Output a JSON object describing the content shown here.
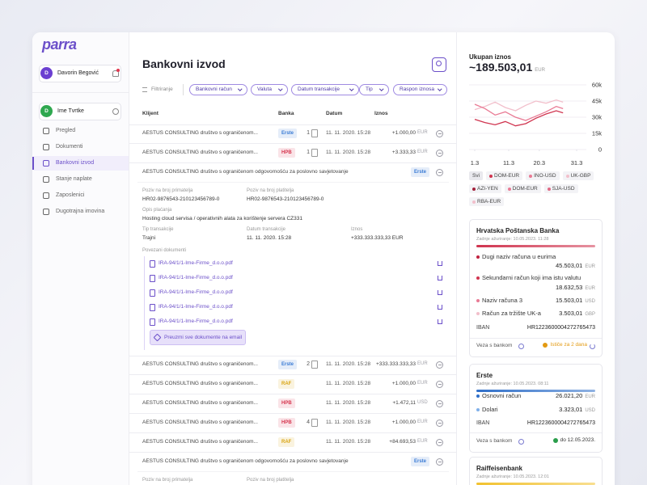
{
  "sidebar": {
    "logo": "parra",
    "user": {
      "initial": "D",
      "name": "Davorin Begović"
    },
    "company": {
      "initial": "D",
      "name": "Ime Tvrtke"
    },
    "nav": [
      {
        "label": "Pregled",
        "active": false
      },
      {
        "label": "Dokumenti",
        "active": false
      },
      {
        "label": "Bankovni izvod",
        "active": true
      },
      {
        "label": "Stanje naplate",
        "active": false
      },
      {
        "label": "Zaposlenici",
        "active": false
      },
      {
        "label": "Dugotrajna imovina",
        "active": false
      }
    ]
  },
  "main": {
    "title": "Bankovni izvod",
    "filter_label": "Filtriranje",
    "filters": [
      "Bankovni račun",
      "Valuta",
      "Datum transakcije",
      "Tip",
      "Raspon iznosa"
    ],
    "columns": [
      "Klijent",
      "Banka",
      "Datum",
      "Iznos"
    ]
  },
  "table": {
    "rows": [
      {
        "client": "AESTUS CONSULTING društvo s ograničenom...",
        "bank": "Erste",
        "bank_color": "#3a7bd5",
        "docs": 1,
        "date": "11. 11. 2020. 15:28",
        "amount": "+1.000,00",
        "currency": "EUR"
      },
      {
        "client": "AESTUS CONSULTING društvo s ograničenom...",
        "bank": "HPB",
        "bank_color": "#d6364f",
        "docs": 1,
        "date": "11. 11. 2020. 15:28",
        "amount": "+3.333,33",
        "currency": "EUR"
      },
      {
        "client": "AESTUS CONSULTING društvo s ograničenom odgovornošću za poslovno savjetovanje",
        "bank": "Erste",
        "bank_color": "#3a7bd5",
        "details": {
          "fields": [
            {
              "label": "Poziv na broj primatelja",
              "value": "HR02-9876543-210123456789-0"
            },
            {
              "label": "Poziv na broj platitelja",
              "value": "HR02-9876543-210123456789-0"
            },
            {
              "label": "Opis plaćanja",
              "value": "Hosting cloud servisa / operativnih alata za korištenje servera CZ331"
            },
            {
              "label": "Tip transakcije",
              "value": "Trajni"
            },
            {
              "label": "Datum transakcije",
              "value": "11. 11. 2020. 15:28"
            },
            {
              "label": "Iznos",
              "value": "+333.333.333,33 EUR"
            }
          ],
          "documents_label": "Povezani dokumenti",
          "documents": [
            "IRA-94/1/1-Ime-Firme_d.o.o.pdf",
            "IRA-94/1/1-Ime-Firme_d.o.o.pdf",
            "IRA-94/1/1-Ime-Firme_d.o.o.pdf",
            "IRA-94/1/1-Ime-Firme_d.o.o.pdf",
            "IRA-94/1/1-Ime-Firme_d.o.o.pdf"
          ],
          "download_button": "Preuzmi sve dokumente na email"
        }
      },
      {
        "client": "AESTUS CONSULTING društvo s ograničenom...",
        "bank": "Erste",
        "bank_color": "#3a7bd5",
        "docs": 2,
        "date": "11. 11. 2020. 15:28",
        "amount": "+333.333.333,33",
        "currency": "EUR"
      },
      {
        "client": "AESTUS CONSULTING društvo s ograničenom...",
        "bank": "RAF",
        "bank_color": "#d9a411",
        "date": "11. 11. 2020. 15:28",
        "amount": "+1.000,00",
        "currency": "EUR"
      },
      {
        "client": "AESTUS CONSULTING društvo s ograničenom...",
        "bank": "HPB",
        "bank_color": "#d6364f",
        "date": "11. 11. 2020. 15:28",
        "amount": "+1.472,11",
        "currency": "USD"
      },
      {
        "client": "AESTUS CONSULTING društvo s ograničenom...",
        "bank": "HPB",
        "bank_color": "#d6364f",
        "docs": 4,
        "date": "11. 11. 2020. 15:28",
        "amount": "+1.000,00",
        "currency": "EUR"
      },
      {
        "client": "AESTUS CONSULTING društvo s ograničenom...",
        "bank": "RAF",
        "bank_color": "#d9a411",
        "date": "11. 11. 2020. 15:28",
        "amount": "+84.693,53",
        "currency": "EUR"
      },
      {
        "client": "AESTUS CONSULTING društvo s ograničenom odgovornošću za poslovno savjetovanje",
        "bank": "Erste",
        "bank_color": "#3a7bd5",
        "details": {
          "fields": [
            {
              "label": "Poziv na broj primatelja"
            },
            {
              "label": "Poziv na broj platitelja"
            }
          ]
        }
      }
    ]
  },
  "right_panel": {
    "title": "Ukupan iznos",
    "total": "~189.503,01",
    "total_currency": "EUR"
  },
  "chart_data": {
    "type": "line",
    "x": [
      1,
      4,
      7,
      10,
      13,
      16,
      19,
      22,
      25,
      27
    ],
    "xlim": [
      1,
      31
    ],
    "xticks": [
      {
        "value": 1,
        "label": "1.3"
      },
      {
        "value": 11,
        "label": "11.3"
      },
      {
        "value": 20,
        "label": "20.3"
      },
      {
        "value": 31,
        "label": "31.3"
      }
    ],
    "ylim": [
      0,
      60000
    ],
    "yticks": [
      {
        "value": 60000,
        "label": "60k"
      },
      {
        "value": 45000,
        "label": "45k"
      },
      {
        "value": 30000,
        "label": "30k"
      },
      {
        "value": 15000,
        "label": "15k"
      },
      0
    ],
    "grid": true,
    "series": [
      {
        "name": "DOM-EUR",
        "color": "#d0344f",
        "values": [
          28000,
          25000,
          23000,
          26000,
          22000,
          24000,
          29000,
          33000,
          36000,
          34000
        ]
      },
      {
        "name": "INO-USD",
        "color": "#e97a94",
        "values": [
          42000,
          38000,
          32000,
          35000,
          30000,
          27000,
          31000,
          35000,
          40000,
          38000
        ]
      },
      {
        "name": "UK-GBP",
        "color": "#f2bfcb",
        "values": [
          37000,
          40000,
          44000,
          39000,
          36000,
          41000,
          45000,
          43000,
          46000,
          44000
        ]
      }
    ],
    "filter_all": "Svi",
    "extra_filters": [
      {
        "name": "AZI-YEN",
        "color": "#a3223b"
      },
      {
        "name": "DOM-EUR",
        "color": "#e97a94"
      },
      {
        "name": "SJA-USD",
        "color": "#e06a85"
      },
      {
        "name": "RBA-EUR",
        "color": "#f2bfcb"
      }
    ]
  },
  "banks": [
    {
      "name": "Hrvatska Poštanska Banka",
      "updated": "Zadnje ažuriranje: 10.05.2023. 11:28",
      "color": "#d0344f",
      "accounts": [
        {
          "name": "Dugi naziv računa u eurima",
          "amount": "45.503,01",
          "currency": "EUR",
          "color": "#c0223f"
        },
        {
          "name": "Sekundarni račun koji ima istu valutu",
          "amount": "18.632,53",
          "currency": "EUR",
          "color": "#d0344f"
        },
        {
          "name": "Naziv računa 3",
          "amount": "15.503,01",
          "currency": "USD",
          "color": "#e97a94"
        },
        {
          "name": "Račun za tržište UK-a",
          "amount": "3.503,01",
          "currency": "GBP",
          "color": "#f2bfcb"
        }
      ],
      "iban_label": "IBAN",
      "iban": "HR1223600004272765473",
      "link_label": "Veza s bankom",
      "status": "Ističe za 2 dana",
      "status_color": "#e39a12"
    },
    {
      "name": "Erste",
      "updated": "Zadnje ažuriranje: 10.05.2023. 08:11",
      "color": "#2f6fc9",
      "accounts": [
        {
          "name": "Osnovni račun",
          "amount": "26.021,20",
          "currency": "EUR",
          "color": "#2f6fc9"
        },
        {
          "name": "Dolari",
          "amount": "3.323,01",
          "currency": "USD",
          "color": "#7fb0ea"
        }
      ],
      "iban_label": "IBAN",
      "iban": "HR1223600004272765473",
      "link_label": "Veza s bankom",
      "status": "do 12.05.2023.",
      "status_color": "#2a9d4b"
    },
    {
      "name": "Raiffeisenbank",
      "updated": "Zadnje ažuriranje: 10.05.2023. 12:01",
      "color": "#f2c230"
    }
  ]
}
